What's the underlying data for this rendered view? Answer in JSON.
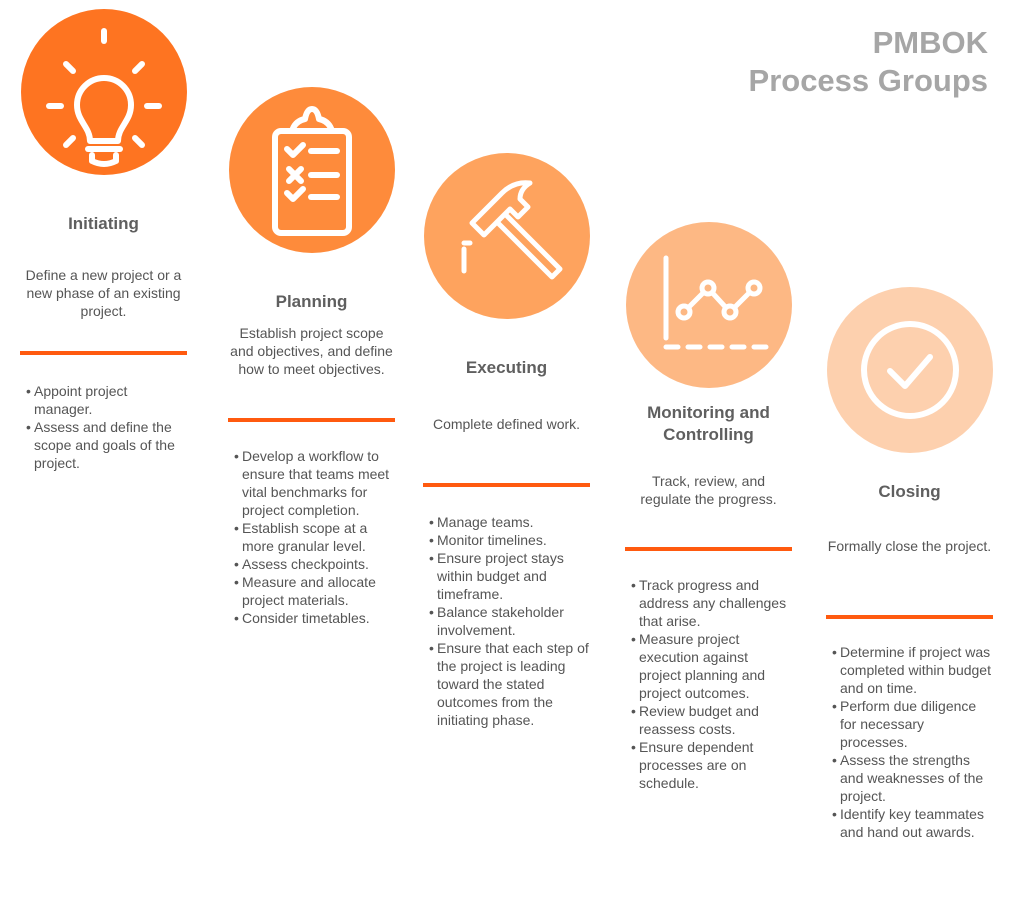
{
  "title": {
    "line1": "PMBOK",
    "line2": "Process Groups"
  },
  "groups": [
    {
      "name": "Initiating",
      "icon": "lightbulb-icon",
      "color": "#fe7421",
      "description": "Define a new project or a new phase of an existing project.",
      "bullets": [
        "Appoint project manager.",
        "Assess and define the scope and goals of the project."
      ]
    },
    {
      "name": "Planning",
      "icon": "clipboard-checklist-icon",
      "color": "#fe8b3b",
      "description": "Establish project scope and objectives, and define how to meet objectives.",
      "bullets": [
        "Develop a workflow to ensure that teams meet vital benchmarks for project completion.",
        "Establish scope at a more granular level.",
        "Assess checkpoints.",
        "Measure and allocate project materials.",
        "Consider timetables."
      ]
    },
    {
      "name": "Executing",
      "icon": "hammer-icon",
      "color": "#fea35e",
      "description": "Complete defined work.",
      "bullets": [
        "Manage teams.",
        "Monitor timelines.",
        "Ensure project stays within budget and timeframe.",
        "Balance stakeholder involvement.",
        "Ensure that each step of the project is leading toward the stated outcomes from the initiating phase."
      ]
    },
    {
      "name": "Monitoring and Controlling",
      "icon": "line-chart-icon",
      "color": "#fdb884",
      "description": "Track, review, and regulate the progress.",
      "bullets": [
        "Track progress and address any challenges that arise.",
        "Measure project execution against project planning and project outcomes.",
        "Review budget and reassess costs.",
        "Ensure dependent processes are on schedule."
      ]
    },
    {
      "name": "Closing",
      "icon": "check-circle-icon",
      "color": "#fdd0ae",
      "description": "Formally close the project.",
      "bullets": [
        "Determine if project was completed within budget and on time.",
        "Perform due diligence for necessary processes.",
        "Assess the strengths and weaknesses of the project.",
        "Identify key teammates and hand out awards."
      ]
    }
  ],
  "rule_color": "#ff5a0f"
}
